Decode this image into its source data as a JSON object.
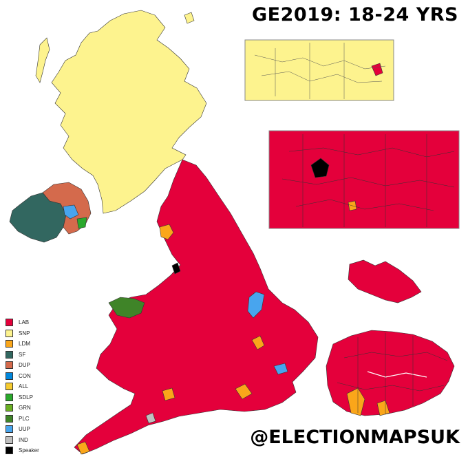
{
  "title": "GE2019: 18-24 YRS",
  "handle": "@ELECTIONMAPSUK",
  "colors": {
    "LAB": "#e4003b",
    "SNP": "#fdf38e",
    "LDM": "#faa61a",
    "SF": "#326760",
    "DUP": "#d46a4c",
    "CON": "#0087dc",
    "ALL": "#f6cb2f",
    "SDLP": "#2aa82c",
    "GRN": "#6ab023",
    "PLC": "#3f8428",
    "UUP": "#48a5ee",
    "IND": "#c0c0c0",
    "Speaker": "#000000"
  },
  "legend": [
    {
      "label": "LAB",
      "color": "#e4003b"
    },
    {
      "label": "SNP",
      "color": "#fdf38e"
    },
    {
      "label": "LDM",
      "color": "#faa61a"
    },
    {
      "label": "SF",
      "color": "#326760"
    },
    {
      "label": "DUP",
      "color": "#d46a4c"
    },
    {
      "label": "CON",
      "color": "#0087dc"
    },
    {
      "label": "ALL",
      "color": "#f6cb2f"
    },
    {
      "label": "SDLP",
      "color": "#2aa82c"
    },
    {
      "label": "GRN",
      "color": "#6ab023"
    },
    {
      "label": "PLC",
      "color": "#3f8428"
    },
    {
      "label": "UUP",
      "color": "#48a5ee"
    },
    {
      "label": "IND",
      "color": "#c0c0c0"
    },
    {
      "label": "Speaker",
      "color": "#000000"
    }
  ]
}
